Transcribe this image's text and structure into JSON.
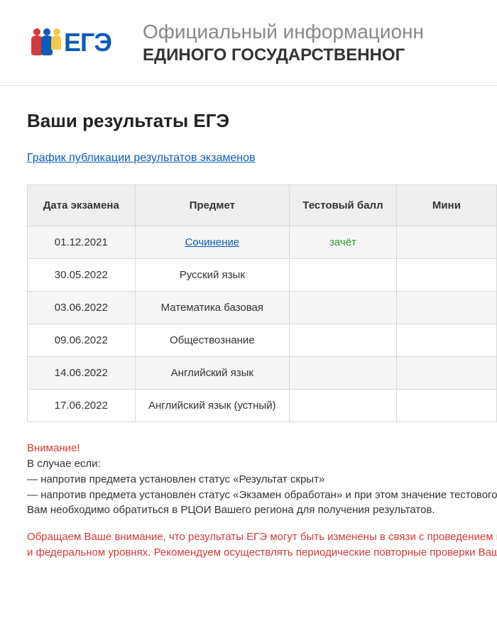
{
  "header": {
    "logo_text": "ЕГЭ",
    "subtitle": "Официальный информационн",
    "title": "ЕДИНОГО ГОСУДАРСТВЕННОГ"
  },
  "page": {
    "title": "Ваши результаты ЕГЭ",
    "schedule_link": "График публикации результатов экзаменов"
  },
  "table": {
    "columns": {
      "date": "Дата экзамена",
      "subject": "Предмет",
      "score": "Тестовый балл",
      "min": "Мини"
    },
    "rows": [
      {
        "date": "01.12.2021",
        "subject": "Сочинение",
        "subject_link": true,
        "score": "зачёт",
        "score_pass": true
      },
      {
        "date": "30.05.2022",
        "subject": "Русский язык",
        "subject_link": false,
        "score": "",
        "score_pass": false
      },
      {
        "date": "03.06.2022",
        "subject": "Математика базовая",
        "subject_link": false,
        "score": "",
        "score_pass": false
      },
      {
        "date": "09.06.2022",
        "subject": "Обществознание",
        "subject_link": false,
        "score": "",
        "score_pass": false
      },
      {
        "date": "14.06.2022",
        "subject": "Английский язык",
        "subject_link": false,
        "score": "",
        "score_pass": false
      },
      {
        "date": "17.06.2022",
        "subject": "Английский язык (устный)",
        "subject_link": false,
        "score": "",
        "score_pass": false
      }
    ]
  },
  "notice": {
    "heading": "Внимание!",
    "line1": "В случае если:",
    "line2": "— напротив предмета установлен статус «Результат скрыт»",
    "line3": "— напротив предмета установлен статус «Экзамен обработан» и при этом значение тестового балла",
    "line4": "Вам необходимо обратиться в РЦОИ Вашего региона для получения результатов.",
    "final1": "Обращаем Ваше внимание, что результаты ЕГЭ могут быть изменены в связи с проведением процед",
    "final2": "и федеральном уровнях. Рекомендуем осуществлять периодические повторные проверки Ваших ре"
  },
  "colors": {
    "link": "#0d5bb8",
    "pass": "#2e9b2e",
    "warning": "#d43a3a",
    "header_bg": "#efefef",
    "row_odd": "#f5f5f5",
    "border": "#d8d8d8"
  }
}
